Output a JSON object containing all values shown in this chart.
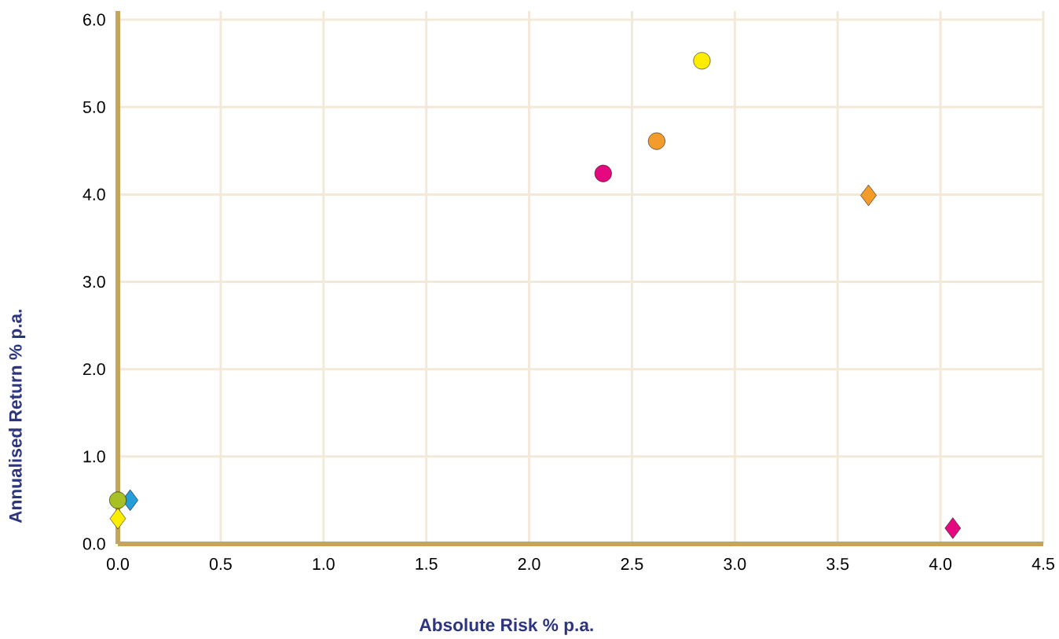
{
  "chart_data": {
    "type": "scatter",
    "xlabel": "Absolute Risk % p.a.",
    "ylabel": "Annualised Return % p.a.",
    "xlim": [
      0,
      4.5
    ],
    "ylim": [
      0,
      6.1
    ],
    "xticks": [
      {
        "value": 0,
        "label": "0.0"
      },
      0.5,
      {
        "value": 1,
        "label": "1.0"
      },
      1.5,
      {
        "value": 2,
        "label": "2.0"
      },
      2.5,
      {
        "value": 3,
        "label": "3.0"
      },
      3.5,
      {
        "value": 4,
        "label": "4.0"
      },
      4.5
    ],
    "yticks": [
      {
        "value": 0,
        "label": "0.0"
      },
      {
        "value": 1,
        "label": "1.0"
      },
      {
        "value": 2,
        "label": "2.0"
      },
      {
        "value": 3,
        "label": "3.0"
      },
      {
        "value": 4,
        "label": "4.0"
      },
      {
        "value": 5,
        "label": "5.0"
      },
      {
        "value": 6,
        "label": "6.0"
      }
    ],
    "grid": true,
    "series": [
      {
        "marker": "diamond",
        "x": [
          0.0,
          0.06,
          3.65,
          4.06
        ],
        "values": [
          0.29,
          0.5,
          3.99,
          0.18
        ],
        "colors": [
          "#ffed00",
          "#249dd9",
          "#f39c2c",
          "#e5097f"
        ]
      },
      {
        "marker": "circle",
        "x": [
          0.0,
          2.36,
          2.62,
          2.84
        ],
        "values": [
          0.5,
          4.24,
          4.61,
          5.53
        ],
        "colors": [
          "#a8c023",
          "#e5097f",
          "#f39c2c",
          "#ffed00"
        ]
      }
    ]
  }
}
